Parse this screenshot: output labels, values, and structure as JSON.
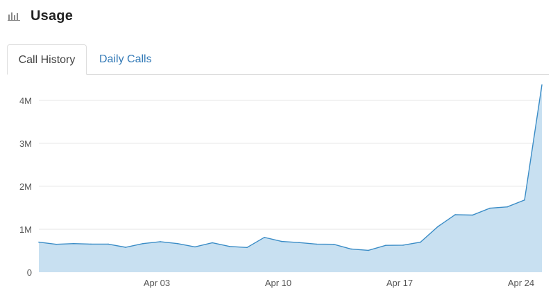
{
  "header": {
    "title": "Usage",
    "icon": "bar-chart-icon"
  },
  "tabs": [
    {
      "label": "Call History",
      "active": true
    },
    {
      "label": "Daily Calls",
      "active": false
    }
  ],
  "colors": {
    "line": "#3a8cc6",
    "area": "#c8e0f1",
    "grid": "#e5e5e5",
    "link": "#337ab7"
  },
  "chart_data": {
    "type": "area",
    "title": "",
    "xlabel": "",
    "ylabel": "",
    "x_start": "Mar 27",
    "x_end": "Apr 26",
    "x_ticks": [
      "Apr 03",
      "Apr 10",
      "Apr 17",
      "Apr 24"
    ],
    "y_ticks": [
      "0",
      "1M",
      "2M",
      "3M",
      "4M"
    ],
    "ylim": [
      0,
      4400000
    ],
    "grid": true,
    "values": [
      700000,
      650000,
      665000,
      655000,
      655000,
      580000,
      665000,
      710000,
      665000,
      590000,
      685000,
      600000,
      575000,
      810000,
      715000,
      690000,
      655000,
      650000,
      540000,
      510000,
      625000,
      630000,
      700000,
      1060000,
      1340000,
      1330000,
      1490000,
      1520000,
      1680000,
      4360000
    ]
  }
}
